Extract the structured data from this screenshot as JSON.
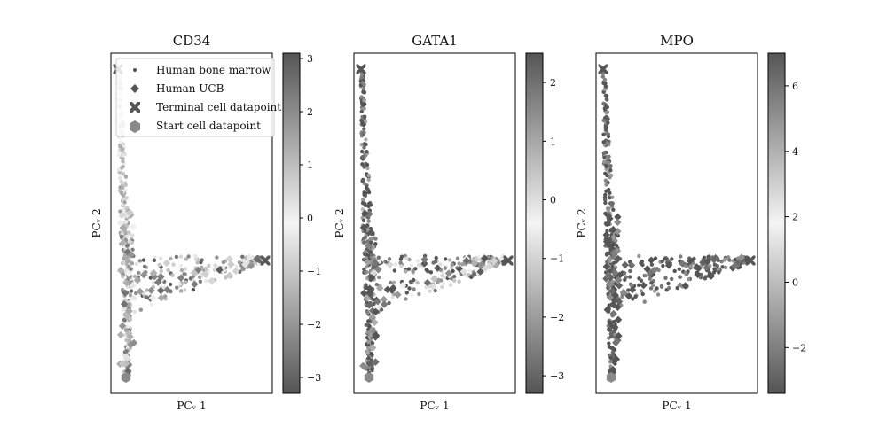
{
  "chart_data": [
    {
      "type": "scatter",
      "title": "CD34",
      "xlabel": "PCᵥ 1",
      "ylabel": "PCᵥ 2",
      "colorbar": {
        "ticks": [
          3,
          2,
          1,
          0,
          -1,
          -2,
          -3
        ],
        "labels": [
          "3",
          "2",
          "1",
          "0",
          "−1",
          "−2",
          "−3"
        ],
        "range": [
          -3.3,
          3.1
        ]
      },
      "legend": {
        "placement": "top-left"
      },
      "series_profile": {
        "stem": -0.05,
        "arm_peak": 1.4,
        "bottom_low": -1.2
      }
    },
    {
      "type": "scatter",
      "title": "GATA1",
      "xlabel": "PCᵥ 1",
      "ylabel": "PCᵥ 2",
      "colorbar": {
        "ticks": [
          2,
          1,
          0,
          -1,
          -2,
          -3
        ],
        "labels": [
          "2",
          "1",
          "0",
          "−1",
          "−2",
          "−3"
        ],
        "range": [
          -3.3,
          2.5
        ]
      },
      "series_profile": {
        "stem": -2.9,
        "arm_peak": 1.5,
        "bottom_low": -2.9
      }
    },
    {
      "type": "scatter",
      "title": "MPO",
      "xlabel": "PCᵥ 1",
      "ylabel": "PCᵥ 2",
      "colorbar": {
        "ticks": [
          6,
          4,
          2,
          0,
          -2
        ],
        "labels": [
          "6",
          "4",
          "2",
          "0",
          "−2"
        ],
        "range": [
          -3.4,
          7.0
        ]
      },
      "series_profile": {
        "stem": 6.5,
        "arm_peak": 6.8,
        "bottom_low": 6.7
      }
    }
  ],
  "legend": {
    "entries": [
      {
        "label": "Human bone marrow",
        "marker": "dot"
      },
      {
        "label": "Human UCB",
        "marker": "diamond"
      },
      {
        "label": "Terminal cell datapoint",
        "marker": "x"
      },
      {
        "label": "Start cell datapoint",
        "marker": "hexagon"
      }
    ]
  },
  "colormap": {
    "low": "#555555",
    "mid": "#f2f2f2",
    "high": "#555555"
  }
}
